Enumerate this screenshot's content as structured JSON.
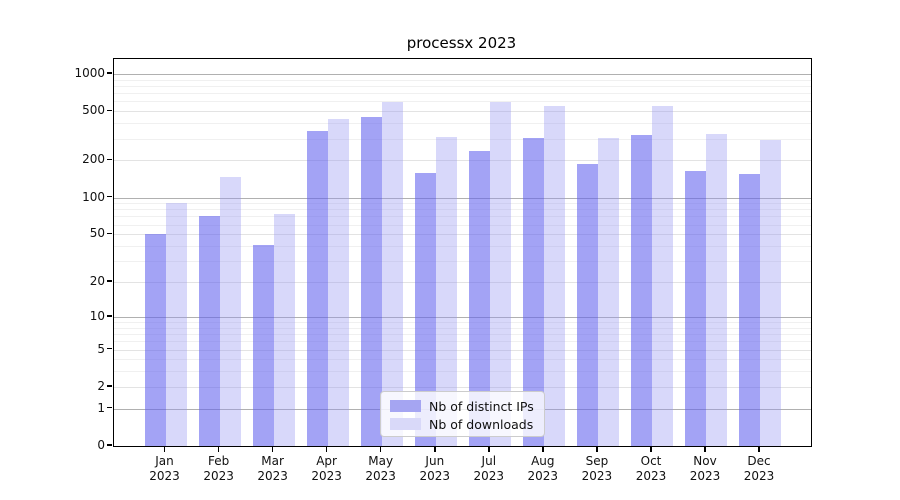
{
  "title": "processx 2023",
  "chart_data": {
    "type": "bar",
    "scale": "log1p",
    "title": "processx 2023",
    "categories": [
      "Jan",
      "Feb",
      "Mar",
      "Apr",
      "May",
      "Jun",
      "Jul",
      "Aug",
      "Sep",
      "Oct",
      "Nov",
      "Dec"
    ],
    "x_tick_year": "2023",
    "series": [
      {
        "name": "Nb of distinct IPs",
        "color": "rgba(99,99,238,0.59)",
        "swatch": "#a5a5f2",
        "values": [
          50,
          71,
          41,
          345,
          448,
          158,
          240,
          302,
          186,
          320,
          163,
          154
        ]
      },
      {
        "name": "Nb of downloads",
        "color": "rgba(150,150,242,0.37)",
        "swatch": "#d9d9f9",
        "values": [
          91,
          147,
          73,
          431,
          592,
          310,
          592,
          549,
          302,
          550,
          326,
          291
        ]
      }
    ],
    "y_ticks": [
      0,
      1,
      2,
      5,
      10,
      20,
      50,
      100,
      200,
      500,
      1000
    ],
    "y_minor_ticks": [
      3,
      4,
      6,
      7,
      8,
      9,
      30,
      40,
      60,
      70,
      80,
      90,
      300,
      400,
      600,
      700,
      800,
      900
    ],
    "y_mid_ticks": [
      2,
      5,
      20,
      50,
      200,
      500
    ],
    "y_major_lines": [
      1,
      10,
      100,
      1000
    ],
    "ylim": [
      0,
      1200
    ],
    "grid": true,
    "legend_position": "bottom-center",
    "xlabel": "",
    "ylabel": ""
  },
  "legend": {
    "items": [
      {
        "label": "Nb of distinct IPs"
      },
      {
        "label": "Nb of downloads"
      }
    ]
  }
}
